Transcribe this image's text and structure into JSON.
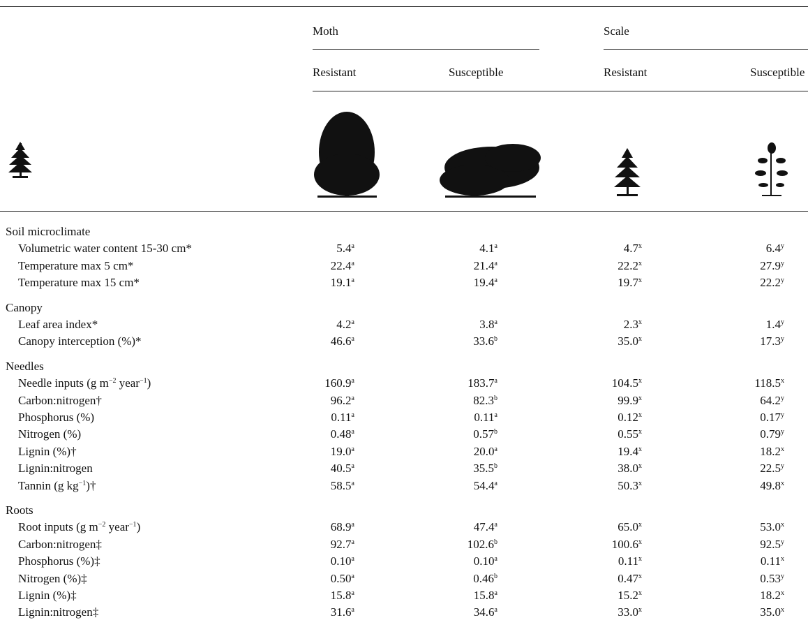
{
  "header": {
    "groups": [
      {
        "label": "Moth",
        "columns": [
          "Resistant",
          "Susceptible"
        ]
      },
      {
        "label": "Scale",
        "columns": [
          "Resistant",
          "Susceptible"
        ]
      }
    ]
  },
  "table": {
    "sections": [
      {
        "title": "Soil microclimate",
        "rows": [
          {
            "label": [
              "Volumetric water content 15-30 cm*"
            ],
            "cells": [
              [
                "5.4",
                "a"
              ],
              [
                "4.1",
                "a"
              ],
              [
                "4.7",
                "x"
              ],
              [
                "6.4",
                "y"
              ]
            ]
          },
          {
            "label": [
              "Temperature max 5 cm*"
            ],
            "cells": [
              [
                "22.4",
                "a"
              ],
              [
                "21.4",
                "a"
              ],
              [
                "22.2",
                "x"
              ],
              [
                "27.9",
                "y"
              ]
            ]
          },
          {
            "label": [
              "Temperature max 15 cm*"
            ],
            "cells": [
              [
                "19.1",
                "a"
              ],
              [
                "19.4",
                "a"
              ],
              [
                "19.7",
                "x"
              ],
              [
                "22.2",
                "y"
              ]
            ]
          }
        ]
      },
      {
        "title": "Canopy",
        "rows": [
          {
            "label": [
              "Leaf area index*"
            ],
            "cells": [
              [
                "4.2",
                "a"
              ],
              [
                "3.8",
                "a"
              ],
              [
                "2.3",
                "x"
              ],
              [
                "1.4",
                "y"
              ]
            ]
          },
          {
            "label": [
              "Canopy interception (%)*"
            ],
            "cells": [
              [
                "46.6",
                "a"
              ],
              [
                "33.6",
                "b"
              ],
              [
                "35.0",
                "x"
              ],
              [
                "17.3",
                "y"
              ]
            ]
          }
        ]
      },
      {
        "title": "Needles",
        "rows": [
          {
            "label": [
              "Needle inputs (g m",
              {
                "sup": "−2"
              },
              " year",
              {
                "sup": "−1"
              },
              ")"
            ],
            "cells": [
              [
                "160.9",
                "a"
              ],
              [
                "183.7",
                "a"
              ],
              [
                "104.5",
                "x"
              ],
              [
                "118.5",
                "x"
              ]
            ]
          },
          {
            "label": [
              "Carbon:nitrogen†"
            ],
            "cells": [
              [
                "96.2",
                "a"
              ],
              [
                "82.3",
                "b"
              ],
              [
                "99.9",
                "x"
              ],
              [
                "64.2",
                "y"
              ]
            ]
          },
          {
            "label": [
              "Phosphorus (%)"
            ],
            "cells": [
              [
                "0.11",
                "a"
              ],
              [
                "0.11",
                "a"
              ],
              [
                "0.12",
                "x"
              ],
              [
                "0.17",
                "y"
              ]
            ]
          },
          {
            "label": [
              "Nitrogen (%)"
            ],
            "cells": [
              [
                "0.48",
                "a"
              ],
              [
                "0.57",
                "b"
              ],
              [
                "0.55",
                "x"
              ],
              [
                "0.79",
                "y"
              ]
            ]
          },
          {
            "label": [
              "Lignin (%)†"
            ],
            "cells": [
              [
                "19.0",
                "a"
              ],
              [
                "20.0",
                "a"
              ],
              [
                "19.4",
                "x"
              ],
              [
                "18.2",
                "x"
              ]
            ]
          },
          {
            "label": [
              "Lignin:nitrogen"
            ],
            "cells": [
              [
                "40.5",
                "a"
              ],
              [
                "35.5",
                "b"
              ],
              [
                "38.0",
                "x"
              ],
              [
                "22.5",
                "y"
              ]
            ]
          },
          {
            "label": [
              "Tannin (g kg",
              {
                "sup": "−1"
              },
              ")†"
            ],
            "cells": [
              [
                "58.5",
                "a"
              ],
              [
                "54.4",
                "a"
              ],
              [
                "50.3",
                "x"
              ],
              [
                "49.8",
                "x"
              ]
            ]
          }
        ]
      },
      {
        "title": "Roots",
        "rows": [
          {
            "label": [
              "Root inputs (g m",
              {
                "sup": "−2"
              },
              " year",
              {
                "sup": "−1"
              },
              ")"
            ],
            "cells": [
              [
                "68.9",
                "a"
              ],
              [
                "47.4",
                "a"
              ],
              [
                "65.0",
                "x"
              ],
              [
                "53.0",
                "x"
              ]
            ]
          },
          {
            "label": [
              "Carbon:nitrogen‡"
            ],
            "cells": [
              [
                "92.7",
                "a"
              ],
              [
                "102.6",
                "b"
              ],
              [
                "100.6",
                "x"
              ],
              [
                "92.5",
                "y"
              ]
            ]
          },
          {
            "label": [
              "Phosphorus (%)‡"
            ],
            "cells": [
              [
                "0.10",
                "a"
              ],
              [
                "0.10",
                "a"
              ],
              [
                "0.11",
                "x"
              ],
              [
                "0.11",
                "x"
              ]
            ]
          },
          {
            "label": [
              "Nitrogen (%)‡"
            ],
            "cells": [
              [
                "0.50",
                "a"
              ],
              [
                "0.46",
                "b"
              ],
              [
                "0.47",
                "x"
              ],
              [
                "0.53",
                "y"
              ]
            ]
          },
          {
            "label": [
              "Lignin (%)‡"
            ],
            "cells": [
              [
                "15.8",
                "a"
              ],
              [
                "15.8",
                "a"
              ],
              [
                "15.2",
                "x"
              ],
              [
                "18.2",
                "x"
              ]
            ]
          },
          {
            "label": [
              "Lignin:nitrogen‡"
            ],
            "cells": [
              [
                "31.6",
                "a"
              ],
              [
                "34.6",
                "a"
              ],
              [
                "33.0",
                "x"
              ],
              [
                "35.0",
                "x"
              ]
            ]
          }
        ]
      }
    ]
  }
}
